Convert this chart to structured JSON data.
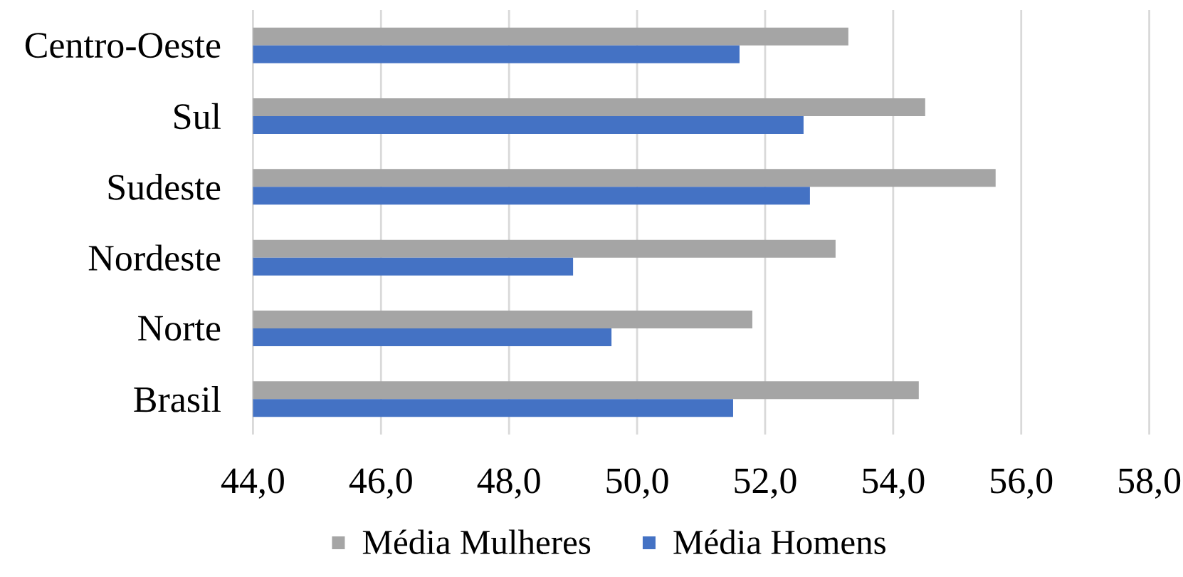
{
  "chart_data": {
    "type": "bar",
    "orientation": "horizontal",
    "categories": [
      "Centro-Oeste",
      "Sul",
      "Sudeste",
      "Nordeste",
      "Norte",
      "Brasil"
    ],
    "series": [
      {
        "name": "Média Mulheres",
        "color": "#a5a5a5",
        "values": [
          53.3,
          54.5,
          55.6,
          53.1,
          51.8,
          54.4
        ]
      },
      {
        "name": "Média Homens",
        "color": "#4472c4",
        "values": [
          51.6,
          52.6,
          52.7,
          49.0,
          49.6,
          51.5
        ]
      }
    ],
    "xlim": [
      44,
      58
    ],
    "xticks": [
      {
        "value": 44,
        "label": "44,0"
      },
      {
        "value": 46,
        "label": "46,0"
      },
      {
        "value": 48,
        "label": "48,0"
      },
      {
        "value": 50,
        "label": "50,0"
      },
      {
        "value": 52,
        "label": "52,0"
      },
      {
        "value": 54,
        "label": "54,0"
      },
      {
        "value": 56,
        "label": "56,0"
      },
      {
        "value": 58,
        "label": "58,0"
      }
    ],
    "grid": "x",
    "legend": "bottom"
  }
}
